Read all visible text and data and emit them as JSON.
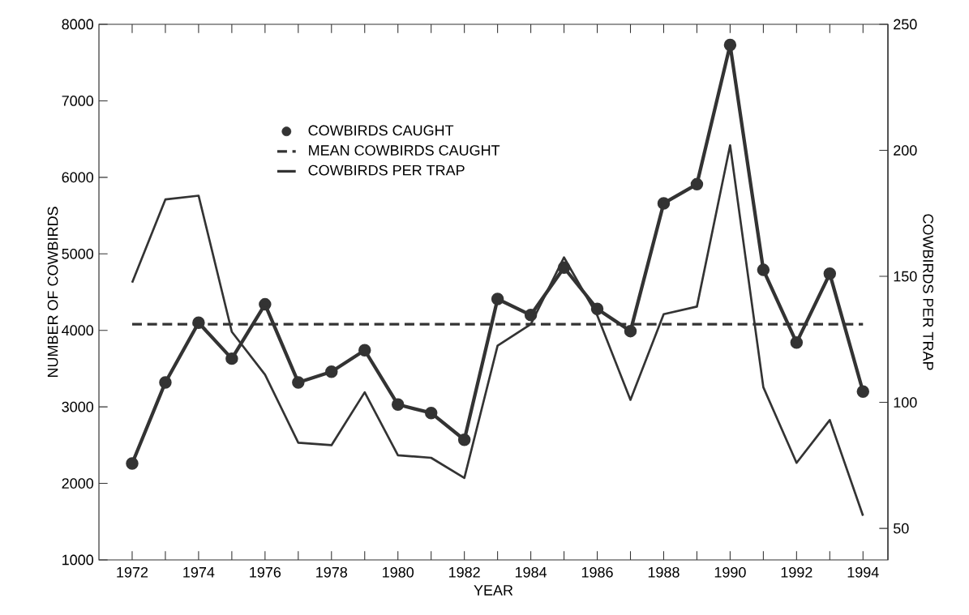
{
  "chart_data": {
    "type": "line",
    "xlabel": "YEAR",
    "ylabel": "NUMBER OF COWBIRDS",
    "y2label": "COWBIRDS PER TRAP",
    "x": [
      1972,
      1973,
      1974,
      1975,
      1976,
      1977,
      1978,
      1979,
      1980,
      1981,
      1982,
      1983,
      1984,
      1985,
      1986,
      1987,
      1988,
      1989,
      1990,
      1991,
      1992,
      1993,
      1994
    ],
    "series": [
      {
        "name": "COWBIRDS CAUGHT",
        "color": "#333333",
        "marker": "circle",
        "values": [
          2260,
          3320,
          4100,
          3630,
          4340,
          3320,
          3460,
          3740,
          3030,
          2920,
          2570,
          4410,
          4200,
          4820,
          4280,
          3990,
          5660,
          5910,
          7730,
          4790,
          3840,
          4740,
          3200
        ]
      },
      {
        "name": "COWBIRDS PER TRAP",
        "color": "#333333",
        "marker": "none",
        "axis": "y2",
        "values": [
          147.5,
          180.5,
          182,
          128,
          111,
          84,
          83,
          104,
          79,
          78,
          70,
          122.5,
          131,
          157.5,
          134.5,
          101,
          135,
          138,
          202,
          106,
          76,
          93,
          55
        ]
      }
    ],
    "ref_lines": [
      {
        "axis": "y",
        "value": 4080,
        "label": "MEAN COWBIRDS CAUGHT",
        "color": "#333333",
        "line_style": "dashed"
      }
    ],
    "xlim": [
      1971,
      1994.75
    ],
    "xticks": [
      1972,
      {
        "value": 1973,
        "label": null
      },
      1974,
      {
        "value": 1975,
        "label": null
      },
      1976,
      {
        "value": 1977,
        "label": null
      },
      1978,
      {
        "value": 1979,
        "label": null
      },
      1980,
      {
        "value": 1981,
        "label": null
      },
      1982,
      {
        "value": 1983,
        "label": null
      },
      1984,
      {
        "value": 1985,
        "label": null
      },
      1986,
      {
        "value": 1987,
        "label": null
      },
      1988,
      {
        "value": 1989,
        "label": null
      },
      1990,
      {
        "value": 1991,
        "label": null
      },
      1992,
      {
        "value": 1993,
        "label": null
      },
      1994
    ],
    "ylim": [
      1000,
      8000
    ],
    "yticks": [
      1000,
      2000,
      3000,
      4000,
      5000,
      6000,
      7000,
      8000
    ],
    "y2lim": [
      37.5,
      250
    ],
    "y2ticks": [
      50,
      100,
      150,
      200,
      250
    ],
    "grid": false,
    "legend": "top"
  }
}
